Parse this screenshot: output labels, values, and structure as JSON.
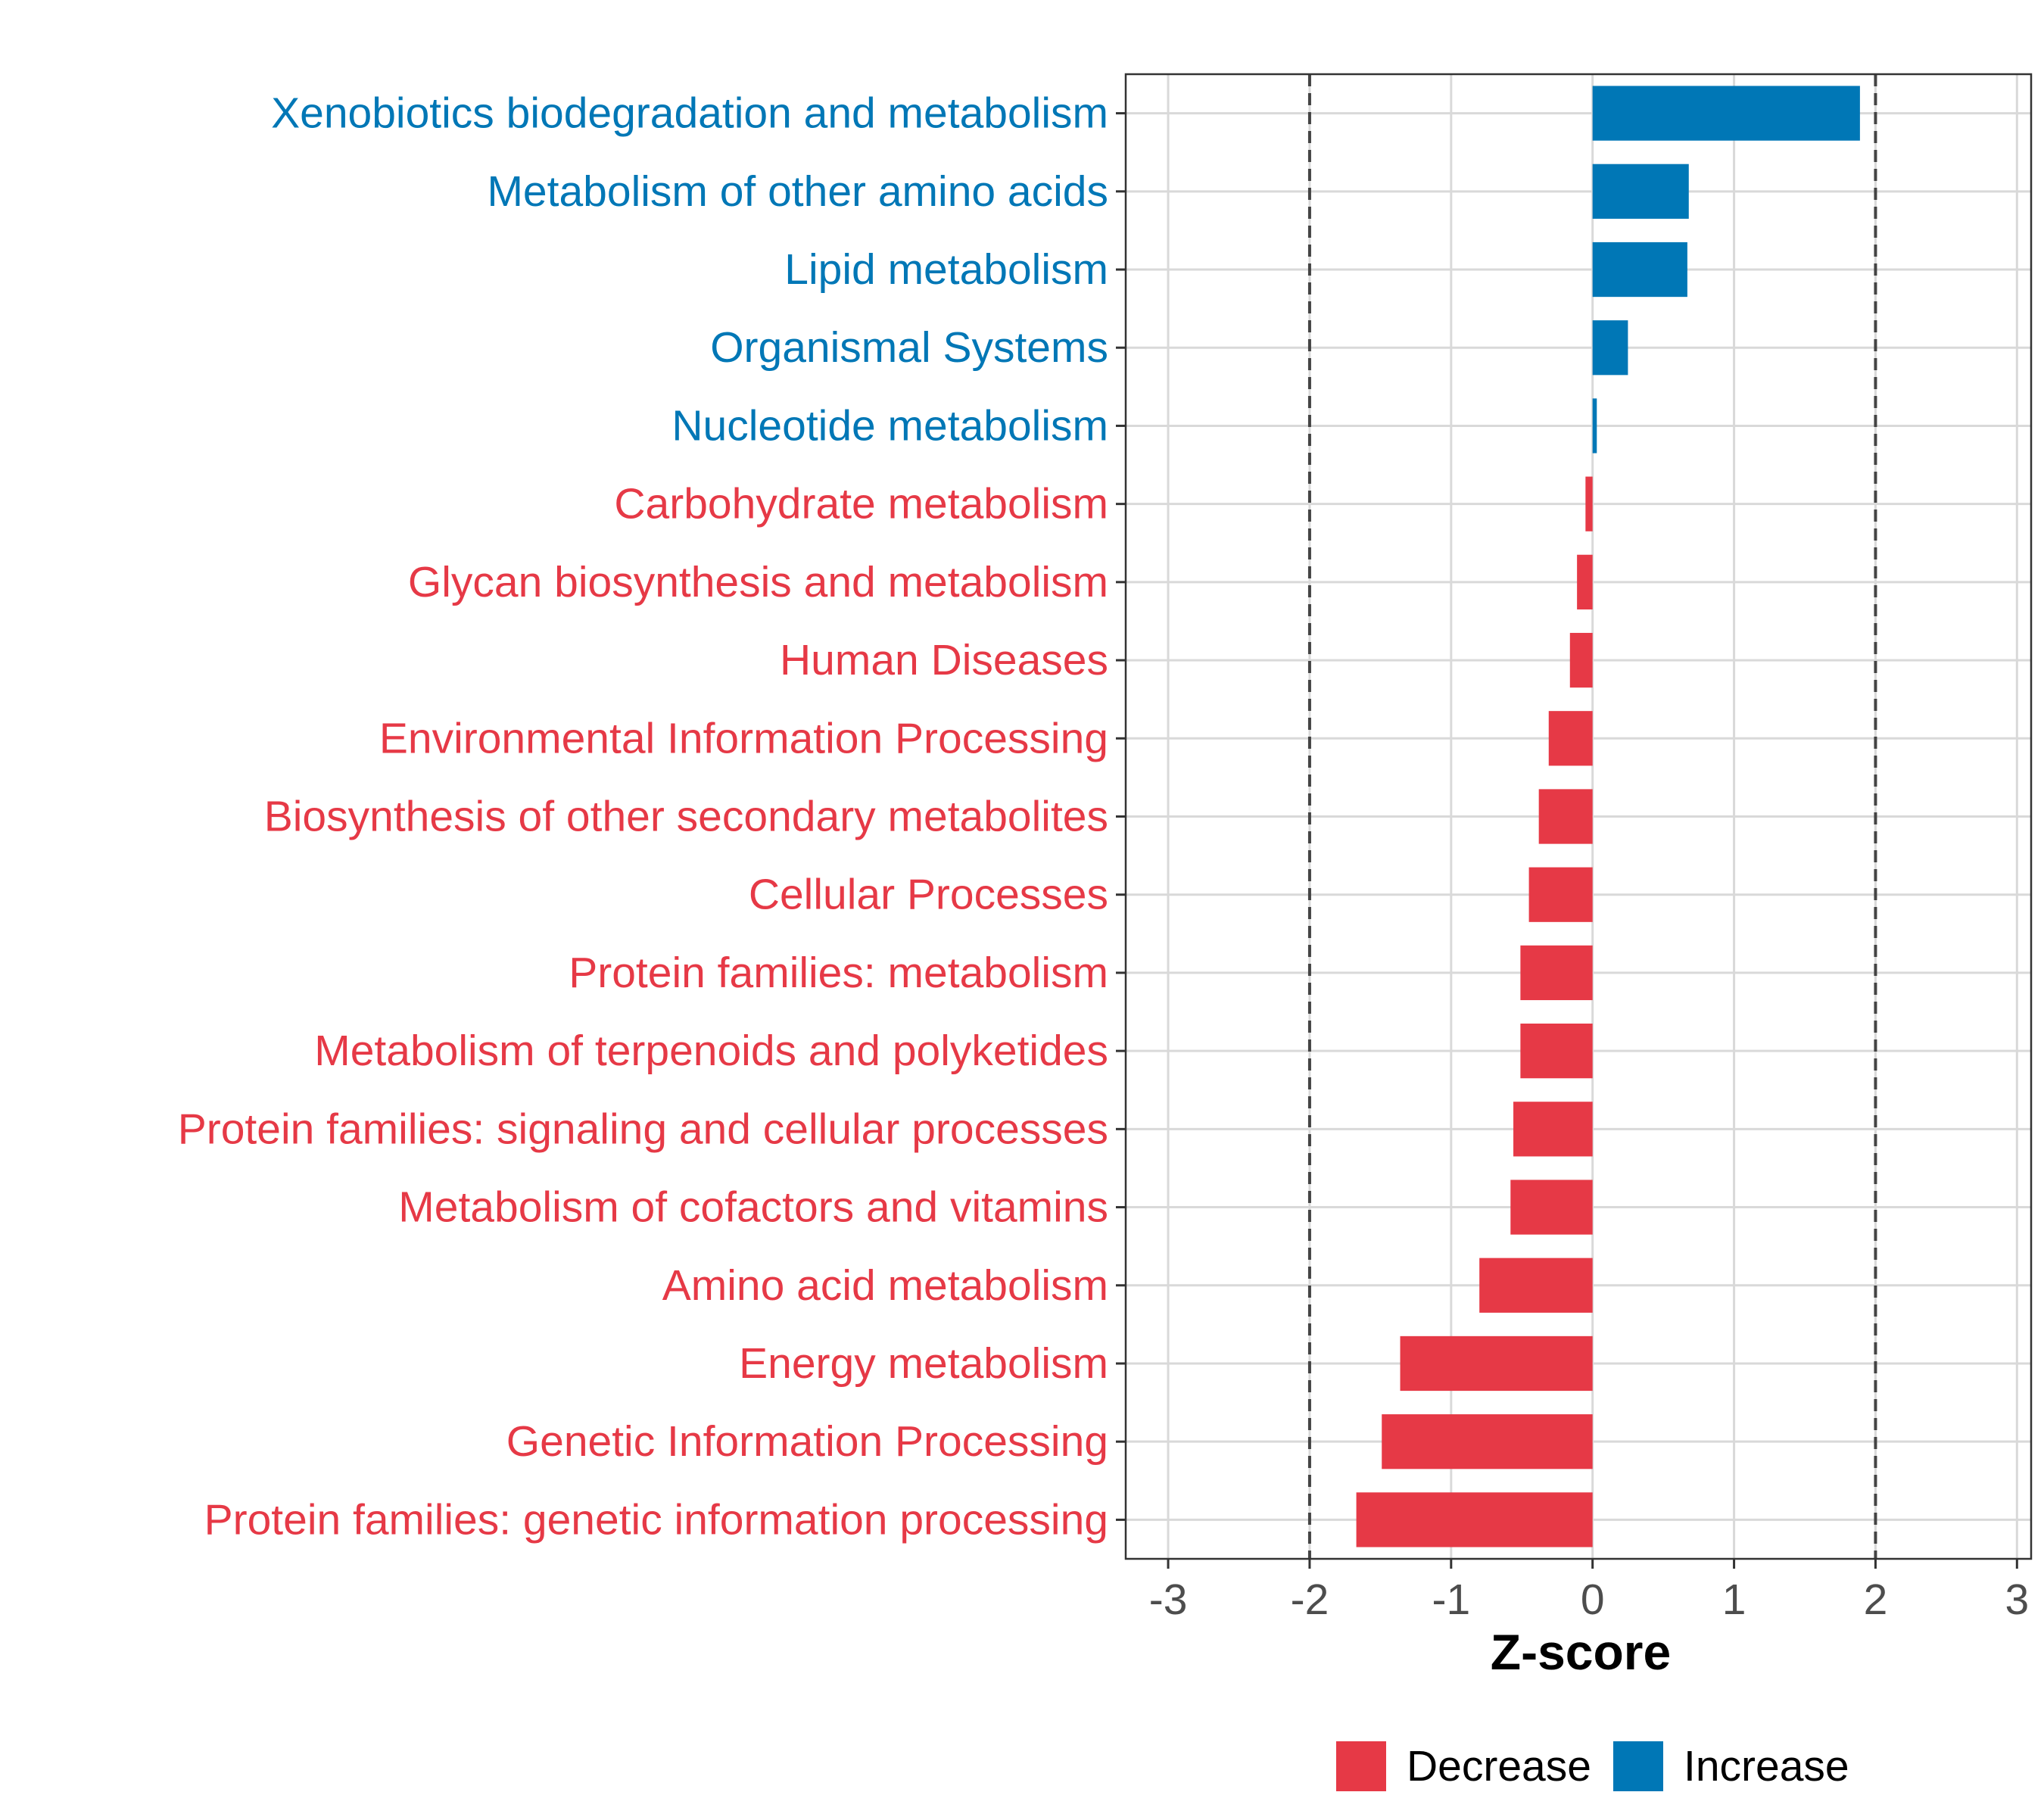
{
  "chart_data": {
    "type": "bar",
    "orientation": "horizontal",
    "xlabel": "Z-score",
    "xlim": [
      -3.3,
      3.1
    ],
    "xticks": [
      -3,
      -2,
      -1,
      0,
      1,
      2,
      3
    ],
    "tick_labels": [
      "-3",
      "-2",
      "-1",
      "0",
      "1",
      "2",
      "3"
    ],
    "reference_lines": [
      -2,
      2
    ],
    "grid": true,
    "legend_position": "bottom",
    "colors": {
      "Decrease": "#e63946",
      "Increase": "#0077b6"
    },
    "legend": [
      {
        "label": "Decrease",
        "color": "#e63946"
      },
      {
        "label": "Increase",
        "color": "#0077b6"
      }
    ],
    "categories": [
      "Xenobiotics biodegradation and metabolism",
      "Metabolism of other amino acids",
      "Lipid metabolism",
      "Organismal Systems",
      "Nucleotide metabolism",
      "Carbohydrate metabolism",
      "Glycan biosynthesis and metabolism",
      "Human Diseases",
      "Environmental Information Processing",
      "Biosynthesis of other secondary metabolites",
      "Cellular Processes",
      "Protein families: metabolism",
      "Metabolism of terpenoids and polyketides",
      "Protein families: signaling and cellular processes",
      "Metabolism of cofactors and vitamins",
      "Amino acid metabolism",
      "Energy metabolism",
      "Genetic Information Processing",
      "Protein families: genetic information processing"
    ],
    "values": [
      1.89,
      0.68,
      0.67,
      0.25,
      0.03,
      -0.05,
      -0.11,
      -0.16,
      -0.31,
      -0.38,
      -0.45,
      -0.51,
      -0.51,
      -0.56,
      -0.58,
      -0.8,
      -1.36,
      -1.49,
      -1.67
    ],
    "groups": [
      "Increase",
      "Increase",
      "Increase",
      "Increase",
      "Increase",
      "Decrease",
      "Decrease",
      "Decrease",
      "Decrease",
      "Decrease",
      "Decrease",
      "Decrease",
      "Decrease",
      "Decrease",
      "Decrease",
      "Decrease",
      "Decrease",
      "Decrease",
      "Decrease"
    ]
  }
}
